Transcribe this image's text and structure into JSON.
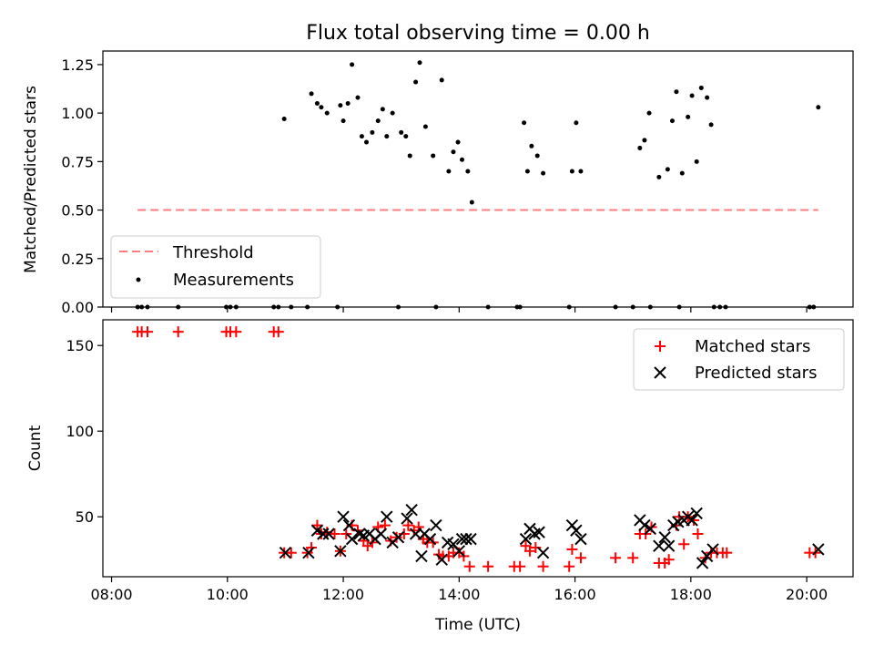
{
  "title": "Flux total observing time = 0.00 h",
  "colors": {
    "threshold": "#ff7f7f",
    "measurements": "#000000",
    "matched": "#ff0000",
    "predicted": "#000000"
  },
  "chart_data": [
    {
      "type": "scatter",
      "ylabel": "Matched/Predicted stars",
      "xlim": [
        7.85,
        20.8
      ],
      "ylim": [
        0,
        1.32
      ],
      "yticks": [
        "0.00",
        "0.25",
        "0.50",
        "0.75",
        "1.00",
        "1.25"
      ],
      "legend": "lower-left",
      "threshold": {
        "name": "Threshold",
        "value": 0.5,
        "x": [
          8.45,
          20.2
        ]
      },
      "measurements": {
        "name": "Measurements",
        "points": [
          [
            8.45,
            0
          ],
          [
            8.52,
            0
          ],
          [
            8.62,
            0
          ],
          [
            9.15,
            0
          ],
          [
            9.98,
            0
          ],
          [
            10.05,
            0
          ],
          [
            10.15,
            0
          ],
          [
            10.8,
            0
          ],
          [
            10.88,
            0
          ],
          [
            11.1,
            0
          ],
          [
            11.38,
            0
          ],
          [
            11.9,
            0
          ],
          [
            12.95,
            0
          ],
          [
            13.6,
            0
          ],
          [
            14.5,
            0
          ],
          [
            15.0,
            0
          ],
          [
            15.05,
            0
          ],
          [
            15.9,
            0
          ],
          [
            16.7,
            0
          ],
          [
            17.0,
            0
          ],
          [
            17.3,
            0
          ],
          [
            17.8,
            0
          ],
          [
            18.4,
            0
          ],
          [
            18.5,
            0
          ],
          [
            18.6,
            0
          ],
          [
            20.05,
            0
          ],
          [
            20.12,
            0
          ],
          [
            10.98,
            0.97
          ],
          [
            11.45,
            1.1
          ],
          [
            11.55,
            1.05
          ],
          [
            11.62,
            1.03
          ],
          [
            11.72,
            1.0
          ],
          [
            11.95,
            1.04
          ],
          [
            12.0,
            0.96
          ],
          [
            12.08,
            1.05
          ],
          [
            12.15,
            1.25
          ],
          [
            12.25,
            1.08
          ],
          [
            12.32,
            0.88
          ],
          [
            12.4,
            0.85
          ],
          [
            12.5,
            0.9
          ],
          [
            12.6,
            0.96
          ],
          [
            12.68,
            1.02
          ],
          [
            12.75,
            0.88
          ],
          [
            12.85,
            1.0
          ],
          [
            13.0,
            0.9
          ],
          [
            13.08,
            0.88
          ],
          [
            13.15,
            0.78
          ],
          [
            13.25,
            1.16
          ],
          [
            13.32,
            1.26
          ],
          [
            13.42,
            0.93
          ],
          [
            13.55,
            0.78
          ],
          [
            13.7,
            1.17
          ],
          [
            13.82,
            0.7
          ],
          [
            13.9,
            0.8
          ],
          [
            13.98,
            0.85
          ],
          [
            14.05,
            0.76
          ],
          [
            14.15,
            0.7
          ],
          [
            14.22,
            0.54
          ],
          [
            15.12,
            0.95
          ],
          [
            15.18,
            0.7
          ],
          [
            15.25,
            0.83
          ],
          [
            15.35,
            0.78
          ],
          [
            15.45,
            0.69
          ],
          [
            15.95,
            0.7
          ],
          [
            16.02,
            0.95
          ],
          [
            16.1,
            0.7
          ],
          [
            17.12,
            0.82
          ],
          [
            17.2,
            0.86
          ],
          [
            17.28,
            1.0
          ],
          [
            17.45,
            0.67
          ],
          [
            17.6,
            0.71
          ],
          [
            17.68,
            0.96
          ],
          [
            17.75,
            1.11
          ],
          [
            17.85,
            0.69
          ],
          [
            17.95,
            0.98
          ],
          [
            18.02,
            1.09
          ],
          [
            18.1,
            0.75
          ],
          [
            18.18,
            1.13
          ],
          [
            18.28,
            1.08
          ],
          [
            18.35,
            0.94
          ],
          [
            20.2,
            1.03
          ]
        ]
      }
    },
    {
      "type": "scatter",
      "xlabel": "Time (UTC)",
      "ylabel": "Count",
      "xlim": [
        7.85,
        20.8
      ],
      "ylim": [
        15,
        165
      ],
      "yticks": [
        "50",
        "100",
        "150"
      ],
      "xticks": [
        "08:00",
        "10:00",
        "12:00",
        "14:00",
        "16:00",
        "18:00",
        "20:00"
      ],
      "legend": "upper-right",
      "series": [
        {
          "name": "Matched stars",
          "marker": "plus",
          "points": [
            [
              8.45,
              158
            ],
            [
              8.52,
              158
            ],
            [
              8.62,
              158
            ],
            [
              9.15,
              158
            ],
            [
              9.98,
              158
            ],
            [
              10.05,
              158
            ],
            [
              10.15,
              158
            ],
            [
              10.8,
              158
            ],
            [
              10.88,
              158
            ],
            [
              10.98,
              29
            ],
            [
              11.1,
              29
            ],
            [
              11.38,
              29
            ],
            [
              11.45,
              32
            ],
            [
              11.55,
              45
            ],
            [
              11.62,
              40
            ],
            [
              11.72,
              41
            ],
            [
              11.85,
              40
            ],
            [
              11.95,
              30
            ],
            [
              12.05,
              40
            ],
            [
              12.15,
              45
            ],
            [
              12.25,
              42
            ],
            [
              12.35,
              36
            ],
            [
              12.42,
              33
            ],
            [
              12.5,
              35
            ],
            [
              12.6,
              44
            ],
            [
              12.72,
              45
            ],
            [
              12.82,
              36
            ],
            [
              12.92,
              38
            ],
            [
              13.05,
              40
            ],
            [
              13.12,
              45
            ],
            [
              13.22,
              42
            ],
            [
              13.3,
              44
            ],
            [
              13.38,
              37
            ],
            [
              13.45,
              35
            ],
            [
              13.55,
              35
            ],
            [
              13.65,
              28
            ],
            [
              13.72,
              27
            ],
            [
              13.82,
              27
            ],
            [
              13.9,
              29
            ],
            [
              14.0,
              29
            ],
            [
              14.08,
              27
            ],
            [
              14.18,
              21
            ],
            [
              14.5,
              21
            ],
            [
              14.95,
              21
            ],
            [
              15.05,
              21
            ],
            [
              15.15,
              33
            ],
            [
              15.22,
              30
            ],
            [
              15.32,
              32
            ],
            [
              15.45,
              21
            ],
            [
              15.9,
              21
            ],
            [
              15.95,
              31
            ],
            [
              16.1,
              26
            ],
            [
              16.7,
              26
            ],
            [
              17.0,
              26
            ],
            [
              17.12,
              40
            ],
            [
              17.22,
              40
            ],
            [
              17.32,
              44
            ],
            [
              17.45,
              23
            ],
            [
              17.55,
              23
            ],
            [
              17.62,
              25
            ],
            [
              17.75,
              45
            ],
            [
              17.8,
              50
            ],
            [
              17.88,
              34
            ],
            [
              17.95,
              50
            ],
            [
              18.05,
              48
            ],
            [
              18.12,
              40
            ],
            [
              18.25,
              26
            ],
            [
              18.35,
              29
            ],
            [
              18.45,
              29
            ],
            [
              18.55,
              29
            ],
            [
              18.62,
              29
            ],
            [
              20.05,
              29
            ],
            [
              20.15,
              29
            ]
          ]
        },
        {
          "name": "Predicted stars",
          "marker": "cross",
          "points": [
            [
              11.0,
              29
            ],
            [
              11.4,
              29
            ],
            [
              11.55,
              42
            ],
            [
              11.65,
              40
            ],
            [
              11.75,
              40
            ],
            [
              11.95,
              30
            ],
            [
              12.0,
              50
            ],
            [
              12.1,
              45
            ],
            [
              12.15,
              37
            ],
            [
              12.28,
              40
            ],
            [
              12.35,
              39
            ],
            [
              12.45,
              40
            ],
            [
              12.55,
              37
            ],
            [
              12.65,
              40
            ],
            [
              12.75,
              50
            ],
            [
              12.85,
              35
            ],
            [
              12.95,
              38
            ],
            [
              13.1,
              49
            ],
            [
              13.18,
              54
            ],
            [
              13.25,
              40
            ],
            [
              13.35,
              27
            ],
            [
              13.4,
              40
            ],
            [
              13.5,
              37
            ],
            [
              13.6,
              45
            ],
            [
              13.7,
              25
            ],
            [
              13.8,
              35
            ],
            [
              13.9,
              34
            ],
            [
              14.0,
              30
            ],
            [
              14.05,
              37
            ],
            [
              14.12,
              37
            ],
            [
              14.2,
              37
            ],
            [
              15.15,
              37
            ],
            [
              15.22,
              43
            ],
            [
              15.3,
              40
            ],
            [
              15.38,
              41
            ],
            [
              15.45,
              29
            ],
            [
              15.95,
              45
            ],
            [
              16.02,
              42
            ],
            [
              16.1,
              37
            ],
            [
              17.12,
              48
            ],
            [
              17.2,
              45
            ],
            [
              17.3,
              43
            ],
            [
              17.45,
              33
            ],
            [
              17.55,
              38
            ],
            [
              17.62,
              33
            ],
            [
              17.7,
              45
            ],
            [
              17.78,
              47
            ],
            [
              17.88,
              48
            ],
            [
              17.95,
              50
            ],
            [
              18.02,
              48
            ],
            [
              18.1,
              52
            ],
            [
              18.2,
              23
            ],
            [
              18.28,
              27
            ],
            [
              18.38,
              31
            ],
            [
              20.2,
              31
            ]
          ]
        }
      ]
    }
  ]
}
